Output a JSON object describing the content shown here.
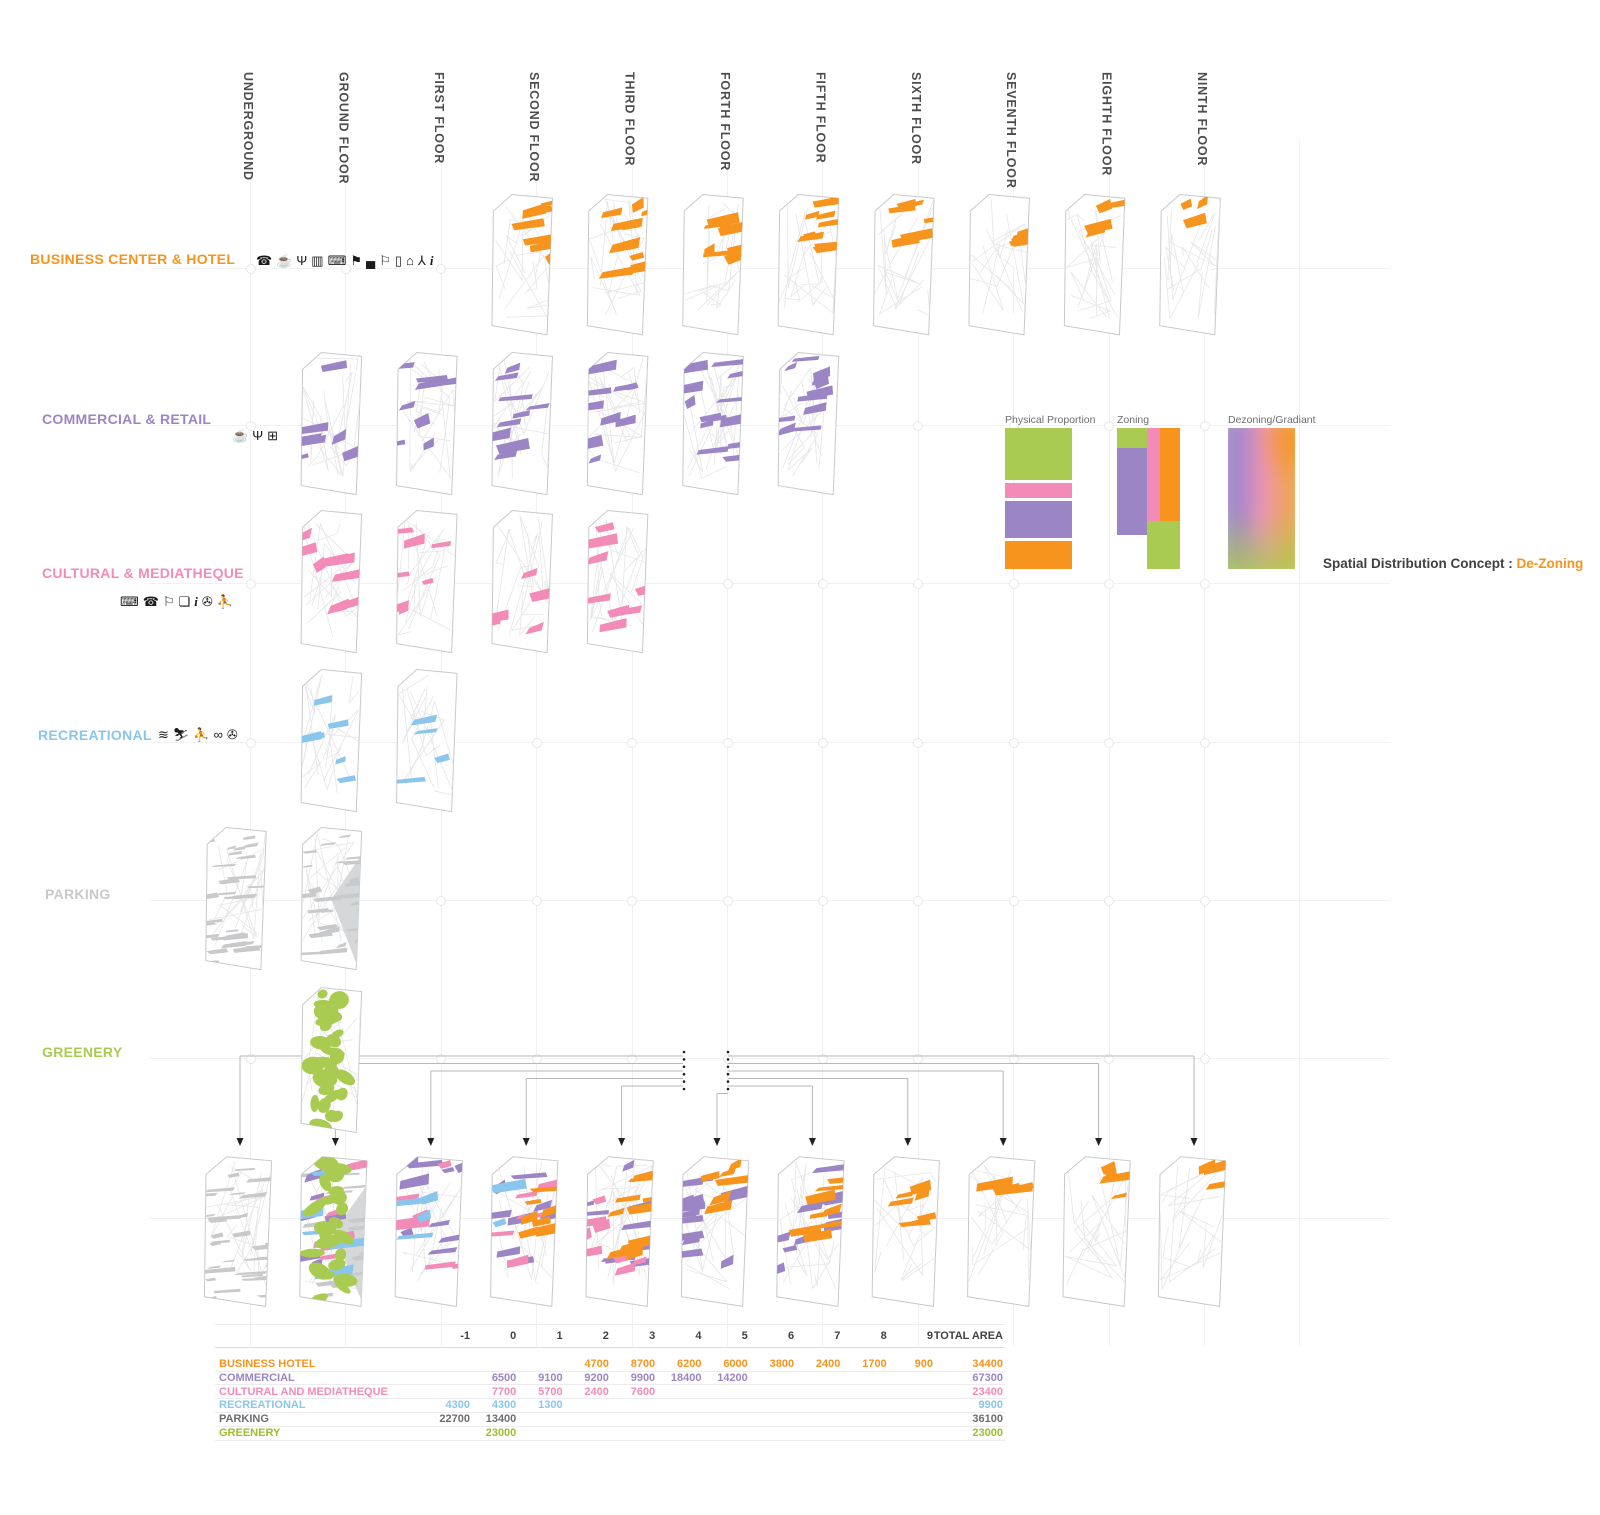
{
  "floor_headers": [
    "UNDERGROUND",
    "GROUND FLOOR",
    "FIRST FLOOR",
    "SECOND FLOOR",
    "THIRD FLOOR",
    "FORTH FLOOR",
    "FIFTH FLOOR",
    "SIXTH FLOOR",
    "SEVENTH FLOOR",
    "EIGHTH FLOOR",
    "NINTH FLOOR"
  ],
  "colors": {
    "orange": "#F7941E",
    "purple": "#9C85C4",
    "pink": "#F28BB8",
    "blue": "#8AC6EC",
    "gray": "#C8C9CB",
    "green": "#A9CB52",
    "header_text": "#4D4D4F"
  },
  "categories": [
    {
      "id": "business",
      "label": "BUSINESS CENTER & HOTEL",
      "color": "#F7941E",
      "icons": [
        "phone",
        "coffee",
        "restaurant",
        "book",
        "computer",
        "flag",
        "bed",
        "signpost",
        "door",
        "house",
        "hanger",
        "info"
      ],
      "plans": [
        {
          "col": 3,
          "n": 5
        },
        {
          "col": 4,
          "n": 8
        },
        {
          "col": 5,
          "n": 6
        },
        {
          "col": 6,
          "n": 6
        },
        {
          "col": 7,
          "n": 4
        },
        {
          "col": 8,
          "n": 3
        },
        {
          "col": 9,
          "n": 2
        },
        {
          "col": 10,
          "n": 1
        }
      ]
    },
    {
      "id": "commercial",
      "label": "COMMERCIAL & RETAIL",
      "color": "#9C85C4",
      "icons": [
        "coffee",
        "restaurant",
        "cart"
      ],
      "plans": [
        {
          "col": 1,
          "n": 5
        },
        {
          "col": 2,
          "n": 6
        },
        {
          "col": 3,
          "n": 7
        },
        {
          "col": 4,
          "n": 7
        },
        {
          "col": 5,
          "n": 11
        },
        {
          "col": 6,
          "n": 9
        }
      ]
    },
    {
      "id": "cultural",
      "label": "CULTURAL & MEDIATHEQUE",
      "color": "#F28BB8",
      "icons": [
        "computer",
        "phone",
        "sign",
        "folder",
        "info",
        "film-reel",
        "dancer"
      ],
      "plans": [
        {
          "col": 1,
          "n": 6
        },
        {
          "col": 2,
          "n": 5
        },
        {
          "col": 3,
          "n": 3
        },
        {
          "col": 4,
          "n": 6
        }
      ]
    },
    {
      "id": "recreational",
      "label": "RECREATIONAL",
      "color": "#8AC6EC",
      "icons": [
        "swimmer",
        "skier",
        "dancer",
        "bicycle",
        "film-reel"
      ],
      "plans": [
        {
          "col": 1,
          "n": 4
        },
        {
          "col": 2,
          "n": 2
        }
      ]
    },
    {
      "id": "parking",
      "label": "PARKING",
      "color": "#C8C9CB",
      "icons": [],
      "plans": [
        {
          "col": 0,
          "n": 15
        },
        {
          "col": 1,
          "n": 12,
          "tri": true
        }
      ]
    },
    {
      "id": "greenery",
      "label": "GREENERY",
      "color": "#A9CB52",
      "icons": [],
      "plans": [
        {
          "col": 1,
          "n": 26
        }
      ]
    }
  ],
  "combined_row": [
    {
      "col": 0,
      "layers": [
        {
          "cat": "parking",
          "n": 14
        }
      ]
    },
    {
      "col": 1,
      "layers": [
        {
          "cat": "parking",
          "n": 8,
          "tri": true
        },
        {
          "cat": "commercial",
          "n": 4
        },
        {
          "cat": "cultural",
          "n": 5
        },
        {
          "cat": "recreational",
          "n": 3
        },
        {
          "cat": "greenery",
          "n": 22
        }
      ]
    },
    {
      "col": 2,
      "layers": [
        {
          "cat": "commercial",
          "n": 7
        },
        {
          "cat": "cultural",
          "n": 5
        },
        {
          "cat": "recreational",
          "n": 2
        }
      ]
    },
    {
      "col": 3,
      "layers": [
        {
          "cat": "commercial",
          "n": 7
        },
        {
          "cat": "cultural",
          "n": 3
        },
        {
          "cat": "recreational",
          "n": 1
        },
        {
          "cat": "business",
          "n": 5
        }
      ]
    },
    {
      "col": 4,
      "layers": [
        {
          "cat": "commercial",
          "n": 7
        },
        {
          "cat": "cultural",
          "n": 6
        },
        {
          "cat": "business",
          "n": 8
        }
      ]
    },
    {
      "col": 5,
      "layers": [
        {
          "cat": "commercial",
          "n": 11
        },
        {
          "cat": "business",
          "n": 6
        }
      ]
    },
    {
      "col": 6,
      "layers": [
        {
          "cat": "commercial",
          "n": 9
        },
        {
          "cat": "business",
          "n": 6
        }
      ]
    },
    {
      "col": 7,
      "layers": [
        {
          "cat": "business",
          "n": 5
        }
      ]
    },
    {
      "col": 8,
      "layers": [
        {
          "cat": "business",
          "n": 3
        }
      ]
    },
    {
      "col": 9,
      "layers": [
        {
          "cat": "business",
          "n": 2
        }
      ]
    },
    {
      "col": 10,
      "layers": [
        {
          "cat": "business",
          "n": 1
        }
      ]
    }
  ],
  "legend": {
    "charts": [
      {
        "title": "Physical Proportion"
      },
      {
        "title": "Zoning"
      },
      {
        "title": "Dezoning/Gradiant"
      }
    ],
    "caption_prefix": "Spatial Distribution Concept : ",
    "caption_highlight": "De-Zoning"
  },
  "table": {
    "columns": [
      "-1",
      "0",
      "1",
      "2",
      "3",
      "4",
      "5",
      "6",
      "7",
      "8",
      "9",
      "TOTAL AREA"
    ],
    "rows": [
      {
        "label": "BUSINESS HOTEL",
        "color": "#F7941E",
        "values": {
          "2": "4700",
          "3": "8700",
          "4": "6200",
          "5": "6000",
          "6": "3800",
          "7": "2400",
          "8": "1700",
          "9": "900"
        },
        "total": "34400"
      },
      {
        "label": "COMMERCIAL",
        "color": "#9C85C4",
        "values": {
          "0": "6500",
          "1": "9100",
          "2": "9200",
          "3": "9900",
          "4": "18400",
          "5": "14200"
        },
        "total": "67300"
      },
      {
        "label": "CULTURAL AND MEDIATHEQUE",
        "color": "#F28BB8",
        "values": {
          "0": "7700",
          "1": "5700",
          "2": "2400",
          "3": "7600"
        },
        "total": "23400"
      },
      {
        "label": "RECREATIONAL",
        "color": "#8AC6EC",
        "values": {
          "-1": "4300",
          "0": "4300",
          "1": "1300"
        },
        "total": "9900"
      },
      {
        "label": "PARKING",
        "color": "#6D6E71",
        "values": {
          "-1": "22700",
          "0": "13400"
        },
        "total": "36100"
      },
      {
        "label": "GREENERY",
        "color": "#9DBE2E",
        "values": {
          "0": "23000"
        },
        "total": "23000"
      }
    ]
  }
}
